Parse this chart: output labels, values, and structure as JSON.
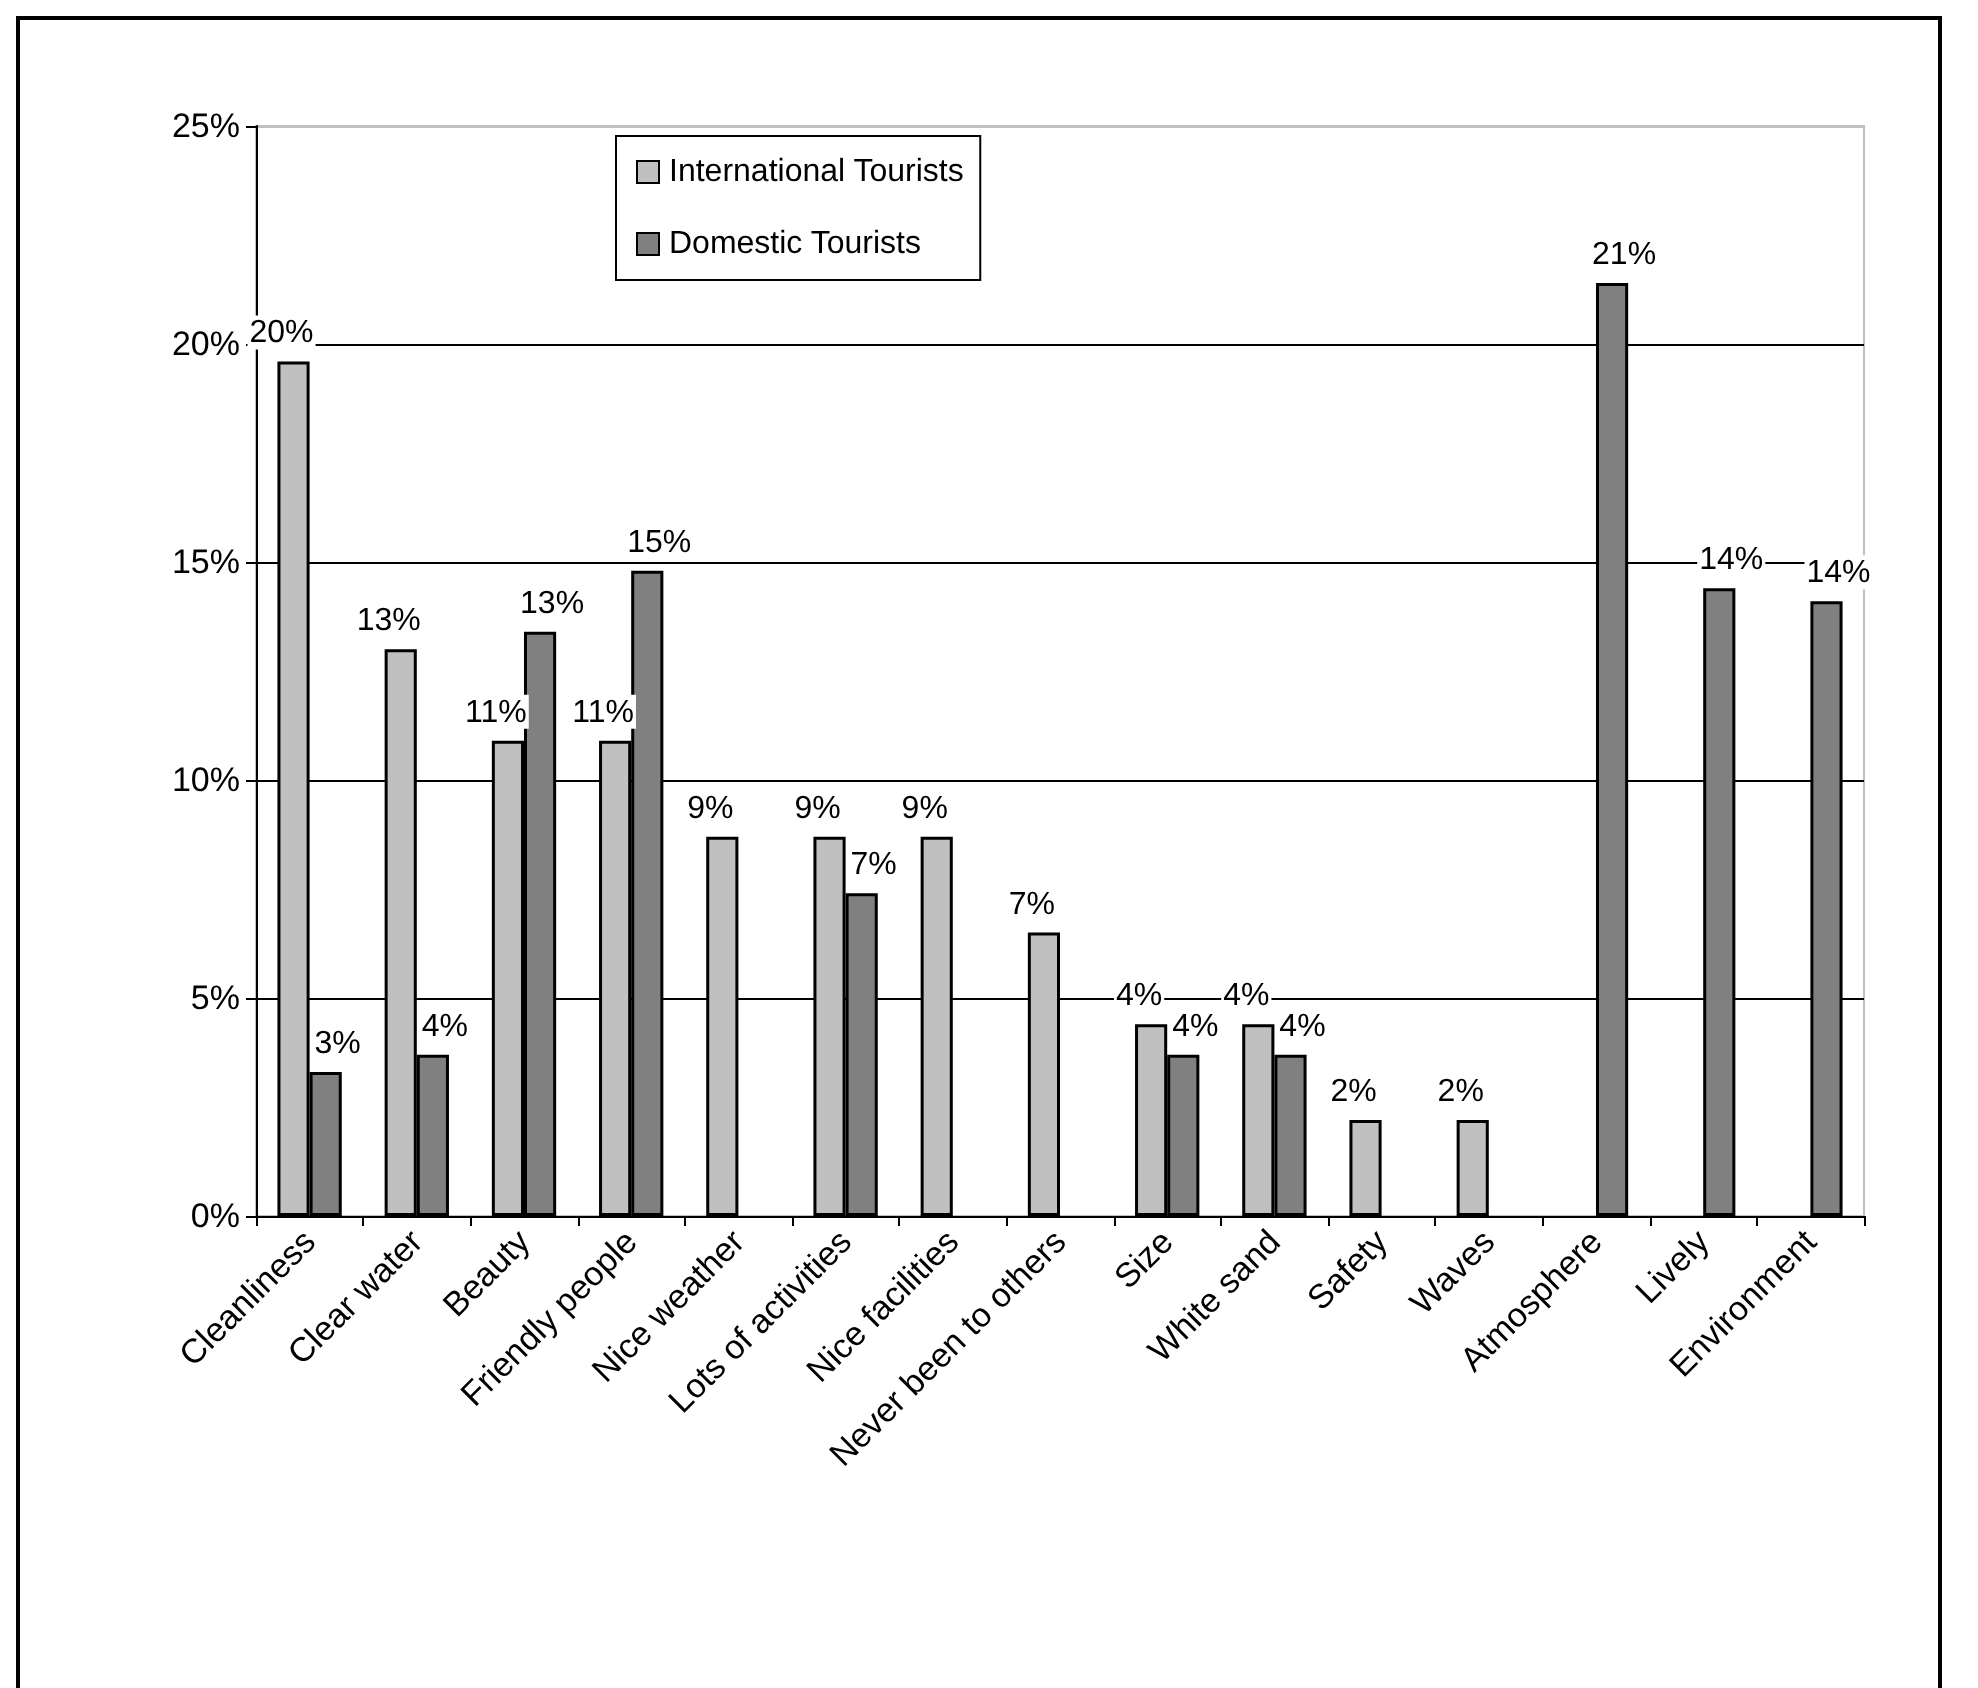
{
  "chart_data": {
    "type": "bar",
    "categories": [
      "Cleanliness",
      "Clear water",
      "Beauty",
      "Friendly people",
      "Nice weather",
      "Lots of activities",
      "Nice facilities",
      "Never been to others",
      "Size",
      "White sand",
      "Safety",
      "Waves",
      "Atmosphere",
      "Lively",
      "Environment"
    ],
    "series": [
      {
        "name": "International Tourists",
        "color": "#c0c0c0",
        "values": [
          19.6,
          13.0,
          10.9,
          10.9,
          8.7,
          8.7,
          8.7,
          6.5,
          4.4,
          4.4,
          2.2,
          2.2,
          null,
          null,
          null
        ],
        "value_labels": [
          "20%",
          "13%",
          "11%",
          "11%",
          "9%",
          "9%",
          "9%",
          "7%",
          "4%",
          "4%",
          "2%",
          "2%",
          null,
          null,
          null
        ]
      },
      {
        "name": "Domestic Tourists",
        "color": "#808080",
        "values": [
          3.3,
          3.7,
          13.4,
          14.8,
          null,
          7.4,
          null,
          null,
          3.7,
          3.7,
          null,
          null,
          21.4,
          14.4,
          14.1
        ],
        "value_labels": [
          "3%",
          "4%",
          "13%",
          "15%",
          null,
          "7%",
          null,
          null,
          "4%",
          "4%",
          null,
          null,
          "21%",
          "14%",
          "14%"
        ]
      }
    ],
    "ylim": [
      0,
      25
    ],
    "yticks": [
      {
        "value": 0,
        "label": "0%"
      },
      {
        "value": 5,
        "label": "5%"
      },
      {
        "value": 10,
        "label": "10%"
      },
      {
        "value": 15,
        "label": "15%"
      },
      {
        "value": 20,
        "label": "20%"
      },
      {
        "value": 25,
        "label": "25%"
      }
    ],
    "grid": "y",
    "legend": "top"
  }
}
